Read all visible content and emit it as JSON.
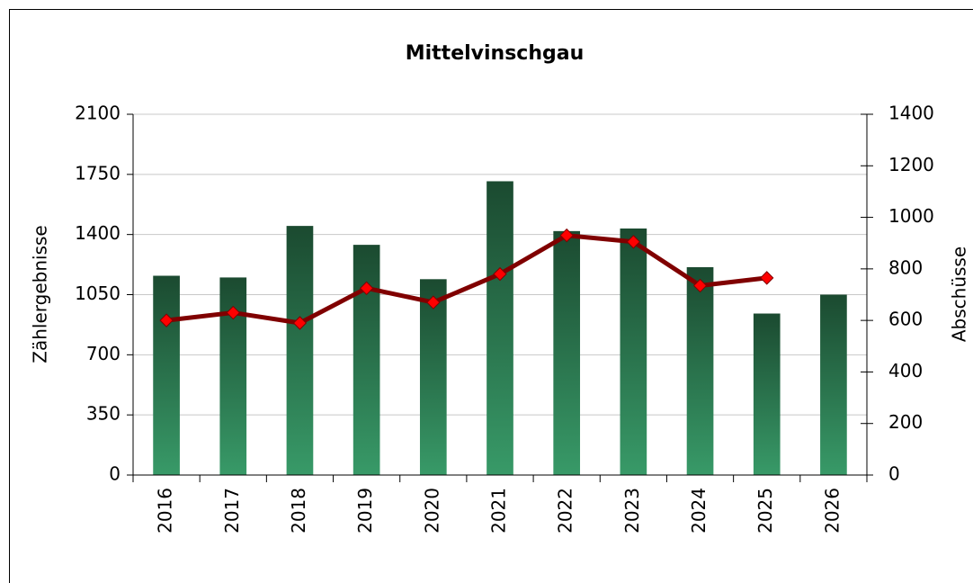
{
  "chart_data": {
    "type": "bar_line",
    "title": "Mittelvinschgau",
    "categories": [
      "2016",
      "2017",
      "2018",
      "2019",
      "2020",
      "2021",
      "2022",
      "2023",
      "2024",
      "2025",
      "2026"
    ],
    "y_label": "Zählergebnisse",
    "y2_label": "Abschüsse",
    "ylim": [
      0,
      2100
    ],
    "yticks": [
      0,
      350,
      700,
      1050,
      1400,
      1750,
      2100
    ],
    "y2lim": [
      0,
      1400
    ],
    "y2ticks": [
      0,
      200,
      400,
      600,
      800,
      1000,
      1200,
      1400
    ],
    "grid": true,
    "series": [
      {
        "name": "Zählergebnisse",
        "type": "bar",
        "color": "#1b4a30",
        "color_bottom": "#389a68",
        "label_color": "#3d6b2a",
        "values": [
          1160,
          1150,
          1450,
          1340,
          1140,
          1710,
          1420,
          1435,
          1210,
          940,
          1050
        ]
      },
      {
        "name": "Abschüsse",
        "type": "line",
        "axis": "y2",
        "color": "#800000",
        "marker_color": "#ff0000",
        "label_color": "#ff0000",
        "values": [
          600,
          630,
          590,
          725,
          670,
          780,
          930,
          905,
          735,
          765,
          null
        ]
      }
    ]
  }
}
